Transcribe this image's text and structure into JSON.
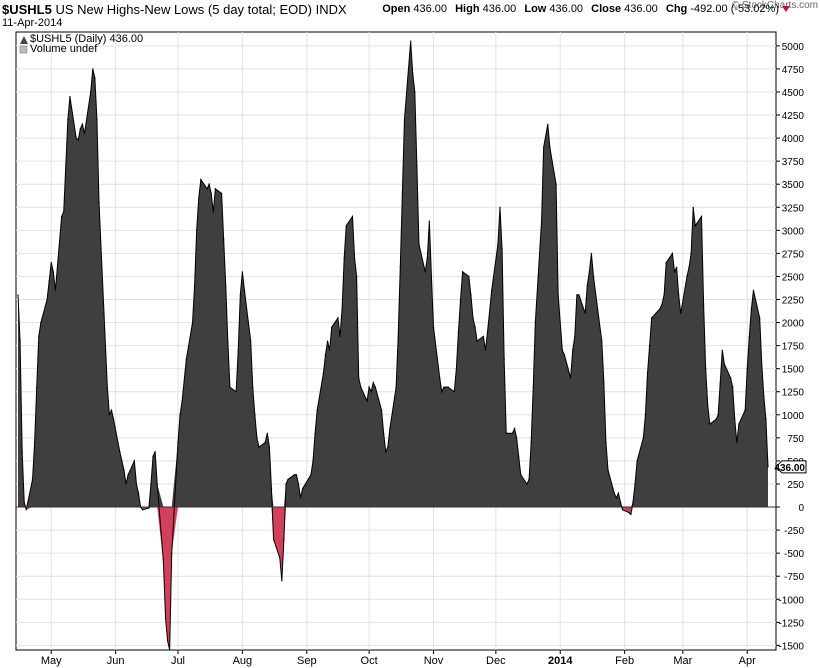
{
  "header": {
    "symbol": "$USHL5",
    "description": "US New Highs-New Lows (5 day total; EOD)",
    "exchange": "INDX",
    "date": "11-Apr-2014",
    "watermark": "© StockCharts.com",
    "ohlc": {
      "open_label": "Open",
      "open": "436.00",
      "high_label": "High",
      "high": "436.00",
      "low_label": "Low",
      "low": "436.00",
      "close_label": "Close",
      "close": "436.00",
      "chg_label": "Chg",
      "chg": "-492.00 (-53.02%)",
      "chg_direction": "down"
    }
  },
  "legend": {
    "series_label": "$USHL5 (Daily) 436.00",
    "volume_label": "Volume undef"
  },
  "chart_data": {
    "type": "area",
    "series": [
      {
        "name": "$USHL5 (Daily)",
        "x": [
          "2013-04-15",
          "2013-04-16",
          "2013-04-17",
          "2013-04-18",
          "2013-04-19",
          "2013-04-22",
          "2013-04-23",
          "2013-04-24",
          "2013-04-25",
          "2013-04-26",
          "2013-04-29",
          "2013-04-30",
          "2013-05-01",
          "2013-05-02",
          "2013-05-03",
          "2013-05-06",
          "2013-05-07",
          "2013-05-08",
          "2013-05-09",
          "2013-05-10",
          "2013-05-13",
          "2013-05-14",
          "2013-05-15",
          "2013-05-16",
          "2013-05-17",
          "2013-05-20",
          "2013-05-21",
          "2013-05-22",
          "2013-05-23",
          "2013-05-24",
          "2013-05-28",
          "2013-05-29",
          "2013-05-30",
          "2013-05-31",
          "2013-06-03",
          "2013-06-04",
          "2013-06-05",
          "2013-06-06",
          "2013-06-07",
          "2013-06-10",
          "2013-06-11",
          "2013-06-12",
          "2013-06-13",
          "2013-06-14",
          "2013-06-17",
          "2013-06-18",
          "2013-06-19",
          "2013-06-20",
          "2013-06-21",
          "2013-06-24",
          "2013-06-25",
          "2013-06-26",
          "2013-06-27",
          "2013-06-28",
          "2013-07-01",
          "2013-07-02",
          "2013-07-03",
          "2013-07-05",
          "2013-07-08",
          "2013-07-09",
          "2013-07-10",
          "2013-07-11",
          "2013-07-12",
          "2013-07-15",
          "2013-07-16",
          "2013-07-17",
          "2013-07-18",
          "2013-07-19",
          "2013-07-22",
          "2013-07-23",
          "2013-07-24",
          "2013-07-25",
          "2013-07-26",
          "2013-07-29",
          "2013-07-30",
          "2013-07-31",
          "2013-08-01",
          "2013-08-02",
          "2013-08-05",
          "2013-08-06",
          "2013-08-07",
          "2013-08-08",
          "2013-08-09",
          "2013-08-12",
          "2013-08-13",
          "2013-08-14",
          "2013-08-15",
          "2013-08-16",
          "2013-08-19",
          "2013-08-20",
          "2013-08-21",
          "2013-08-22",
          "2013-08-23",
          "2013-08-26",
          "2013-08-27",
          "2013-08-28",
          "2013-08-29",
          "2013-08-30",
          "2013-09-03",
          "2013-09-04",
          "2013-09-05",
          "2013-09-06",
          "2013-09-09",
          "2013-09-10",
          "2013-09-11",
          "2013-09-12",
          "2013-09-13",
          "2013-09-16",
          "2013-09-17",
          "2013-09-18",
          "2013-09-19",
          "2013-09-20",
          "2013-09-23",
          "2013-09-24",
          "2013-09-25",
          "2013-09-26",
          "2013-09-27",
          "2013-09-30",
          "2013-10-01",
          "2013-10-02",
          "2013-10-03",
          "2013-10-04",
          "2013-10-07",
          "2013-10-08",
          "2013-10-09",
          "2013-10-10",
          "2013-10-11",
          "2013-10-14",
          "2013-10-15",
          "2013-10-16",
          "2013-10-17",
          "2013-10-18",
          "2013-10-21",
          "2013-10-22",
          "2013-10-23",
          "2013-10-24",
          "2013-10-25",
          "2013-10-28",
          "2013-10-29",
          "2013-10-30",
          "2013-10-31",
          "2013-11-01",
          "2013-11-04",
          "2013-11-05",
          "2013-11-06",
          "2013-11-07",
          "2013-11-08",
          "2013-11-11",
          "2013-11-12",
          "2013-11-13",
          "2013-11-14",
          "2013-11-15",
          "2013-11-18",
          "2013-11-19",
          "2013-11-20",
          "2013-11-21",
          "2013-11-22",
          "2013-11-25",
          "2013-11-26",
          "2013-11-27",
          "2013-11-29",
          "2013-12-02",
          "2013-12-03",
          "2013-12-04",
          "2013-12-05",
          "2013-12-06",
          "2013-12-09",
          "2013-12-10",
          "2013-12-11",
          "2013-12-12",
          "2013-12-13",
          "2013-12-16",
          "2013-12-17",
          "2013-12-18",
          "2013-12-19",
          "2013-12-20",
          "2013-12-23",
          "2013-12-24",
          "2013-12-26",
          "2013-12-27",
          "2013-12-30",
          "2013-12-31",
          "2014-01-02",
          "2014-01-03",
          "2014-01-06",
          "2014-01-07",
          "2014-01-08",
          "2014-01-09",
          "2014-01-10",
          "2014-01-13",
          "2014-01-14",
          "2014-01-15",
          "2014-01-16",
          "2014-01-17",
          "2014-01-21",
          "2014-01-22",
          "2014-01-23",
          "2014-01-24",
          "2014-01-27",
          "2014-01-28",
          "2014-01-29",
          "2014-01-30",
          "2014-01-31",
          "2014-02-03",
          "2014-02-04",
          "2014-02-05",
          "2014-02-06",
          "2014-02-07",
          "2014-02-10",
          "2014-02-11",
          "2014-02-12",
          "2014-02-13",
          "2014-02-14",
          "2014-02-18",
          "2014-02-19",
          "2014-02-20",
          "2014-02-21",
          "2014-02-24",
          "2014-02-25",
          "2014-02-26",
          "2014-02-27",
          "2014-02-28",
          "2014-03-03",
          "2014-03-04",
          "2014-03-05",
          "2014-03-06",
          "2014-03-07",
          "2014-03-10",
          "2014-03-11",
          "2014-03-12",
          "2014-03-13",
          "2014-03-14",
          "2014-03-17",
          "2014-03-18",
          "2014-03-19",
          "2014-03-20",
          "2014-03-21",
          "2014-03-24",
          "2014-03-25",
          "2014-03-26",
          "2014-03-27",
          "2014-03-28",
          "2014-03-31",
          "2014-04-01",
          "2014-04-02",
          "2014-04-03",
          "2014-04-04",
          "2014-04-07",
          "2014-04-08",
          "2014-04-09",
          "2014-04-10",
          "2014-04-11"
        ],
        "y": [
          2300,
          1800,
          600,
          50,
          -30,
          300,
          700,
          1300,
          1850,
          2000,
          2250,
          2450,
          2650,
          2550,
          2350,
          3150,
          3200,
          3700,
          4200,
          4450,
          4000,
          3980,
          4100,
          4150,
          4050,
          4500,
          4750,
          4650,
          4200,
          3300,
          1300,
          1000,
          1050,
          950,
          600,
          500,
          400,
          250,
          350,
          500,
          250,
          150,
          0,
          -30,
          -10,
          250,
          550,
          600,
          250,
          -600,
          -1200,
          -1450,
          -1550,
          -500,
          700,
          1000,
          1150,
          1600,
          2000,
          2400,
          3000,
          3350,
          3550,
          3450,
          3500,
          3400,
          3200,
          3450,
          3400,
          2900,
          2400,
          1800,
          1300,
          1250,
          1700,
          2300,
          2550,
          2350,
          1800,
          1300,
          1000,
          750,
          650,
          700,
          800,
          650,
          200,
          -350,
          -550,
          -800,
          -350,
          250,
          300,
          350,
          350,
          250,
          100,
          200,
          350,
          500,
          800,
          1050,
          1450,
          1650,
          1800,
          1700,
          1950,
          2050,
          1850,
          2150,
          2700,
          3050,
          3150,
          2700,
          2500,
          1400,
          1300,
          1150,
          1300,
          1250,
          1350,
          1300,
          1050,
          800,
          600,
          650,
          850,
          1300,
          1850,
          2600,
          3400,
          4200,
          5050,
          4700,
          4500,
          3700,
          2850,
          2550,
          2700,
          3100,
          2500,
          1950,
          1400,
          1250,
          1300,
          1300,
          1300,
          1250,
          1500,
          1900,
          2250,
          2550,
          2500,
          2300,
          2050,
          1950,
          1800,
          1850,
          1700,
          1900,
          2350,
          2850,
          3250,
          2800,
          1600,
          800,
          800,
          850,
          750,
          550,
          350,
          250,
          300,
          700,
          1300,
          2000,
          3100,
          3900,
          4150,
          3900,
          3500,
          2300,
          1700,
          1650,
          1400,
          1700,
          1850,
          2300,
          2300,
          2100,
          2400,
          2550,
          2750,
          2500,
          1800,
          1350,
          700,
          400,
          150,
          100,
          150,
          50,
          -30,
          -60,
          -80,
          50,
          250,
          500,
          750,
          1000,
          1450,
          1750,
          2050,
          2150,
          2200,
          2300,
          2650,
          2750,
          2550,
          2600,
          2300,
          2100,
          2500,
          2600,
          2750,
          3250,
          3050,
          3150,
          2200,
          1500,
          1100,
          900,
          950,
          1000,
          1350,
          1700,
          1550,
          1400,
          1300,
          950,
          700,
          900,
          1050,
          1500,
          1850,
          2150,
          2350,
          2050,
          1550,
          1200,
          950,
          436
        ]
      }
    ],
    "fill_positive": "#3f3f3f",
    "fill_negative": "#d2405b",
    "line_color": "#000000",
    "ylim": [
      -1550,
      5150
    ],
    "y_ticks": [
      5000,
      4750,
      4500,
      4250,
      4000,
      3750,
      3500,
      3250,
      3000,
      2750,
      2500,
      2250,
      2000,
      1750,
      1500,
      1250,
      1000,
      750,
      500,
      250,
      0,
      -250,
      -500,
      -750,
      -1000,
      -1250,
      -1500
    ],
    "x_ticks": [
      {
        "label": "May",
        "date": "2013-05-01",
        "bold": false
      },
      {
        "label": "Jun",
        "date": "2013-06-01",
        "bold": false
      },
      {
        "label": "Jul",
        "date": "2013-07-01",
        "bold": false
      },
      {
        "label": "Aug",
        "date": "2013-08-01",
        "bold": false
      },
      {
        "label": "Sep",
        "date": "2013-09-01",
        "bold": false
      },
      {
        "label": "Oct",
        "date": "2013-10-01",
        "bold": false
      },
      {
        "label": "Nov",
        "date": "2013-11-01",
        "bold": false
      },
      {
        "label": "Dec",
        "date": "2013-12-01",
        "bold": false
      },
      {
        "label": "2014",
        "date": "2014-01-01",
        "bold": true
      },
      {
        "label": "Feb",
        "date": "2014-02-01",
        "bold": false
      },
      {
        "label": "Mar",
        "date": "2014-03-01",
        "bold": false
      },
      {
        "label": "Apr",
        "date": "2014-04-01",
        "bold": false
      }
    ],
    "last_value_tag": "436.00",
    "grid": true,
    "zero_line": true
  }
}
